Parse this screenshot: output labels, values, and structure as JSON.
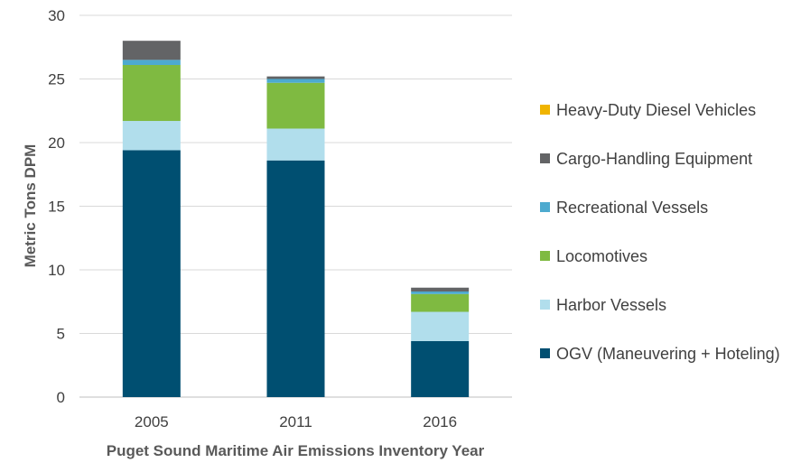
{
  "chart_data": {
    "type": "bar",
    "stacked": true,
    "categories": [
      "2005",
      "2011",
      "2016"
    ],
    "xlabel": "Puget Sound Maritime Air Emissions Inventory Year",
    "ylabel": "Metric Tons DPM",
    "ylim": [
      0,
      30
    ],
    "yticks": [
      0,
      5,
      10,
      15,
      20,
      25,
      30
    ],
    "grid": true,
    "legend_position": "right",
    "series": [
      {
        "name": "OGV (Maneuvering + Hoteling)",
        "color": "#004F71",
        "values": [
          19.4,
          18.6,
          4.4
        ]
      },
      {
        "name": "Harbor Vessels",
        "color": "#B1DEEC",
        "values": [
          2.3,
          2.5,
          2.3
        ]
      },
      {
        "name": "Locomotives",
        "color": "#7FBA41",
        "values": [
          4.4,
          3.6,
          1.4
        ]
      },
      {
        "name": "Recreational Vessels",
        "color": "#4DAACF",
        "values": [
          0.4,
          0.3,
          0.2
        ]
      },
      {
        "name": "Cargo-Handling Equipment",
        "color": "#636466",
        "values": [
          1.5,
          0.2,
          0.3
        ]
      },
      {
        "name": "Heavy-Duty Diesel Vehicles",
        "color": "#F0B400",
        "values": [
          0.0,
          0.0,
          0.0
        ]
      }
    ]
  }
}
